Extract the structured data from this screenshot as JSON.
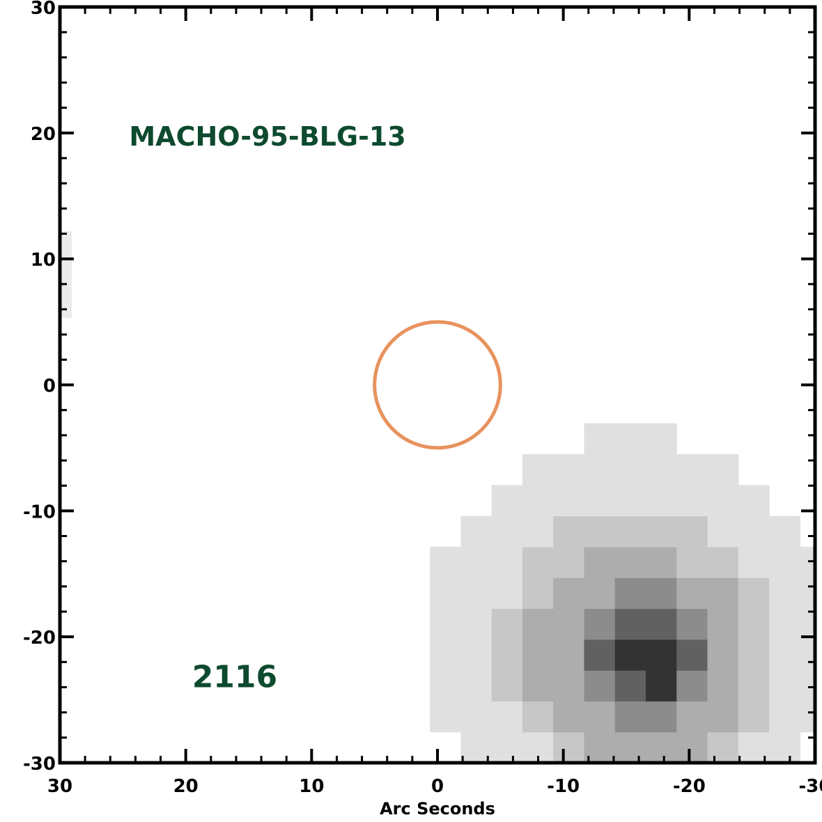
{
  "chart_data": {
    "type": "heatmap",
    "title": "",
    "xlabel": "Arc Seconds",
    "ylabel": "",
    "xlim": [
      30,
      -30
    ],
    "ylim": [
      -30,
      30
    ],
    "x_ticks": [
      30,
      20,
      10,
      0,
      -10,
      -20,
      -30
    ],
    "y_ticks": [
      30,
      20,
      10,
      0,
      -10,
      -20,
      -30
    ],
    "x_tick_labels": [
      "30",
      "20",
      "10",
      "0",
      "-10",
      "-20",
      "-30"
    ],
    "y_tick_labels": [
      "30",
      "20",
      "10",
      "0",
      "-10",
      "-20",
      "-30"
    ],
    "grid": false,
    "grayscale": "white = 0, black = 1",
    "intensity_contours": [
      {
        "level": 0.12,
        "center": [
          -15.5,
          -20.5
        ],
        "radius": 16.5
      },
      {
        "level": 0.22,
        "center": [
          -16.0,
          -21.0
        ],
        "radius": 11.0
      },
      {
        "level": 0.32,
        "center": [
          -16.0,
          -21.5
        ],
        "radius": 8.5
      },
      {
        "level": 0.45,
        "center": [
          -16.5,
          -21.5
        ],
        "radius": 6.0
      },
      {
        "level": 0.62,
        "center": [
          -16.5,
          -22.0
        ],
        "radius": 4.0
      },
      {
        "level": 0.8,
        "center": [
          -17.0,
          -22.0
        ],
        "radius": 2.2
      },
      {
        "level": 1.0,
        "center": [
          -16.5,
          -22.5
        ],
        "radius": 1.0
      }
    ],
    "extra_pixels": [
      {
        "x": [
          29.5,
          30
        ],
        "y": [
          5.3,
          12.2
        ],
        "level": 0.08
      }
    ],
    "circle": {
      "center": [
        0,
        0
      ],
      "radius": 5,
      "color": "#e8925e"
    },
    "annotations": [
      {
        "text": "MACHO-95-BLG-13",
        "x": 24.5,
        "y": 19,
        "color": "#0d4a2e"
      },
      {
        "text": "2116",
        "x": 19.5,
        "y": -24,
        "color": "#0d4a2e"
      }
    ]
  }
}
